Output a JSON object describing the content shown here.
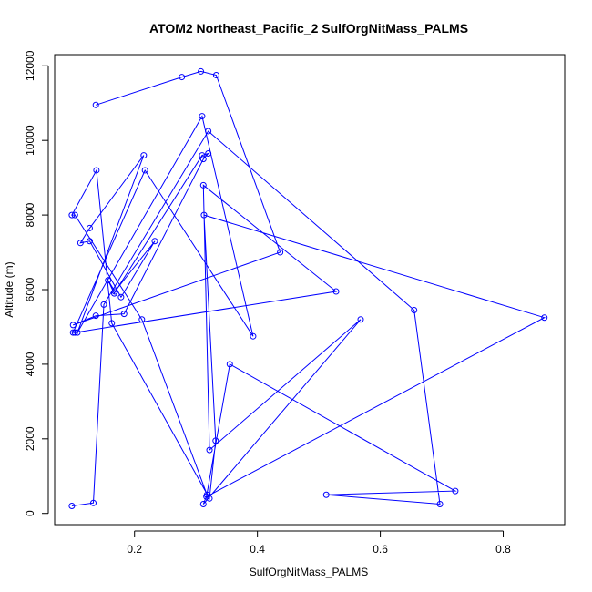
{
  "chart_data": {
    "type": "line",
    "title": "ATOM2 Northeast_Pacific_2 SulfOrgNitMass_PALMS",
    "xlabel": "SulfOrgNitMass_PALMS",
    "ylabel": "Altitude (m)",
    "xlim": [
      0.07,
      0.9
    ],
    "ylim": [
      -300,
      12300
    ],
    "xticks": [
      0.2,
      0.4,
      0.6,
      0.8
    ],
    "xtick_labels": [
      "0.2",
      "0.4",
      "0.6",
      "0.8"
    ],
    "yticks": [
      0,
      2000,
      4000,
      6000,
      8000,
      10000,
      12000
    ],
    "ytick_labels": [
      "0",
      "2000",
      "4000",
      "6000",
      "8000",
      "10000",
      "12000"
    ],
    "grid": false,
    "color": "#0000ff",
    "marker": "open-circle",
    "series": [
      {
        "x": [
          0.137,
          0.277,
          0.308,
          0.333,
          0.437,
          0.1,
          0.137,
          0.183,
          0.312,
          0.32,
          0.31,
          0.167,
          0.157,
          0.168,
          0.233,
          0.178,
          0.127,
          0.112,
          0.127,
          0.215,
          0.107,
          0.31,
          0.393,
          0.217,
          0.1,
          0.103,
          0.528,
          0.312,
          0.322,
          0.568,
          0.312,
          0.318,
          0.212,
          0.103,
          0.098,
          0.138,
          0.163,
          0.322,
          0.332,
          0.313,
          0.867,
          0.317,
          0.355,
          0.722,
          0.512,
          0.697,
          0.655,
          0.32,
          0.15,
          0.133,
          0.098
        ],
        "y": [
          10950,
          11700,
          11850,
          11750,
          7000,
          5050,
          5300,
          5350,
          9500,
          9650,
          9600,
          5900,
          6250,
          5950,
          7300,
          5800,
          7300,
          7250,
          7650,
          9600,
          4850,
          10650,
          4750,
          9200,
          4850,
          4850,
          5950,
          8800,
          1700,
          5200,
          250,
          500,
          5200,
          8000,
          8000,
          9200,
          5100,
          400,
          1950,
          8000,
          5250,
          450,
          4000,
          600,
          500,
          250,
          5450,
          10250,
          5600,
          280,
          200
        ]
      }
    ]
  }
}
